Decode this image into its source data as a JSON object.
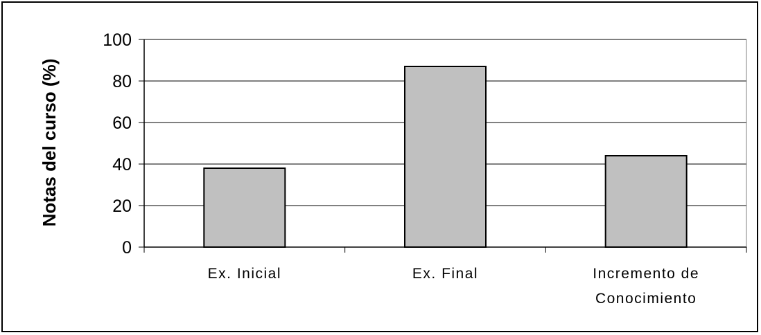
{
  "chart_data": {
    "type": "bar",
    "categories": [
      [
        "Ex. Inicial"
      ],
      [
        "Ex. Final"
      ],
      [
        "Incremento de",
        "Conocimiento"
      ]
    ],
    "values": [
      38,
      87,
      44
    ],
    "xlabel": "",
    "ylabel": "Notas del curso (%)",
    "ylim": [
      0,
      100
    ],
    "yticks": [
      0,
      20,
      40,
      60,
      80,
      100
    ],
    "grid": true,
    "legend": "none",
    "bar_color": "#c0c0c0",
    "bar_edge_color": "#000000"
  }
}
